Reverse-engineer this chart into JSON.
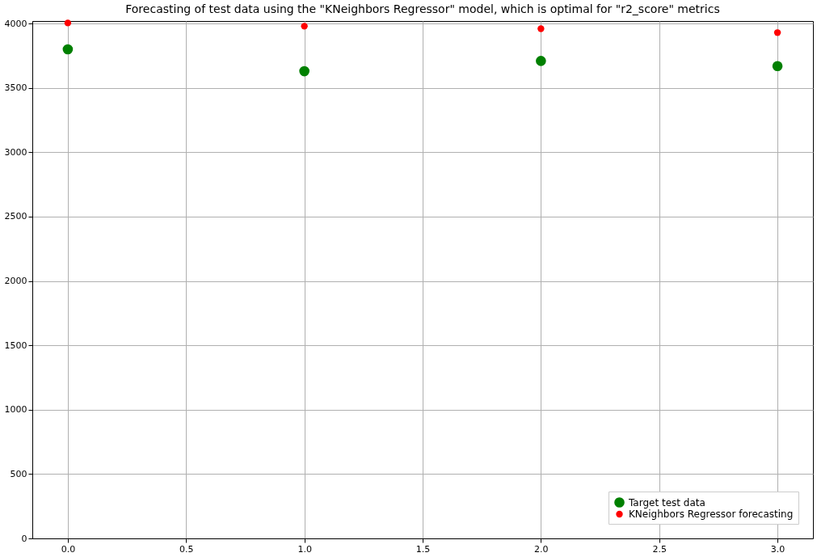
{
  "chart_data": {
    "type": "scatter",
    "title": "Forecasting of test data using the \"KNeighbors Regressor\" model, which is optimal for \"r2_score\" metrics",
    "x": [
      0,
      1,
      2,
      3
    ],
    "series": [
      {
        "name": "Target test data",
        "color": "#008000",
        "values": [
          3800,
          3630,
          3710,
          3670
        ]
      },
      {
        "name": "KNeighbors Regressor forecasting",
        "color": "#ff0000",
        "values": [
          4005,
          3980,
          3960,
          3930
        ]
      }
    ],
    "xlim": [
      -0.15,
      3.15
    ],
    "ylim": [
      0,
      4020
    ],
    "xticks": [
      {
        "value": 0,
        "label": "0.0"
      },
      {
        "value": 0.5,
        "label": "0.5"
      },
      {
        "value": 1,
        "label": "1.0"
      },
      {
        "value": 1.5,
        "label": "1.5"
      },
      {
        "value": 2,
        "label": "2.0"
      },
      {
        "value": 2.5,
        "label": "2.5"
      },
      {
        "value": 3,
        "label": "3.0"
      }
    ],
    "yticks": [
      0,
      500,
      1000,
      1500,
      2000,
      2500,
      3000,
      3500,
      4000
    ],
    "grid": true,
    "legend": "bottom right",
    "marker": "circle"
  }
}
